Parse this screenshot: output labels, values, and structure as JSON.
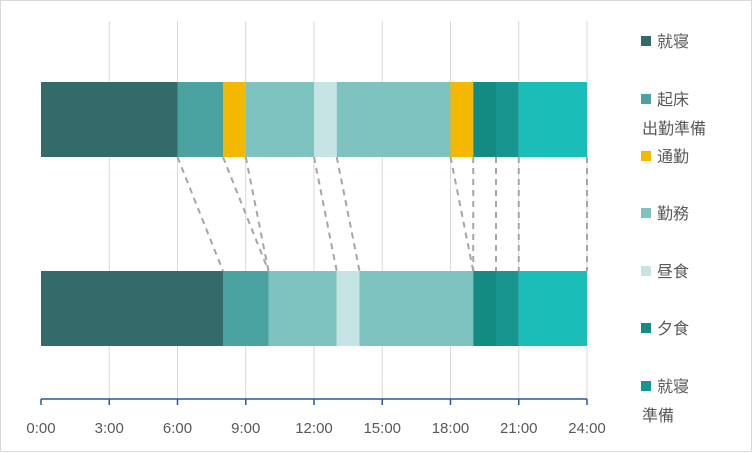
{
  "chart_data": {
    "type": "bar",
    "orientation": "horizontal",
    "stacked": true,
    "x_unit": "hours",
    "xlim": [
      0,
      24
    ],
    "x_tick_values": [
      0,
      3,
      6,
      9,
      12,
      15,
      18,
      21,
      24
    ],
    "x_tick_labels": [
      "0:00",
      "3:00",
      "6:00",
      "9:00",
      "12:00",
      "15:00",
      "18:00",
      "21:00",
      "24:00"
    ],
    "grid": true,
    "legend_position": "right",
    "legend": [
      {
        "key": "sleep",
        "lines": [
          "就寝"
        ],
        "color": "#336b6b"
      },
      {
        "key": "wake_prep",
        "lines": [
          "起床",
          "出勤準備"
        ],
        "color": "#4aa3a0"
      },
      {
        "key": "commute",
        "lines": [
          "通勤"
        ],
        "color": "#f5b800"
      },
      {
        "key": "work",
        "lines": [
          "勤務"
        ],
        "color": "#7fc3c0"
      },
      {
        "key": "lunch",
        "lines": [
          "昼食"
        ],
        "color": "#c5e4e3"
      },
      {
        "key": "dinner",
        "lines": [
          "夕食"
        ],
        "color": "#138b83"
      },
      {
        "key": "bed_prep",
        "lines": [
          "就寝",
          "準備"
        ],
        "color": "#17968f"
      }
    ],
    "bars": [
      {
        "segments": [
          {
            "key": "sleep",
            "start": 0,
            "end": 6,
            "color": "#336b6b"
          },
          {
            "key": "wake_prep",
            "start": 6,
            "end": 8,
            "color": "#4aa3a0"
          },
          {
            "key": "commute",
            "start": 8,
            "end": 9,
            "color": "#f5b800"
          },
          {
            "key": "work",
            "start": 9,
            "end": 12,
            "color": "#7fc3c0"
          },
          {
            "key": "lunch",
            "start": 12,
            "end": 13,
            "color": "#c5e4e3"
          },
          {
            "key": "work",
            "start": 13,
            "end": 18,
            "color": "#7fc3c0"
          },
          {
            "key": "commute",
            "start": 18,
            "end": 19,
            "color": "#f5b800"
          },
          {
            "key": "dinner",
            "start": 19,
            "end": 20,
            "color": "#138b83"
          },
          {
            "key": "bed_prep",
            "start": 20,
            "end": 21,
            "color": "#17968f"
          },
          {
            "key": "bed_prep",
            "start": 21,
            "end": 24,
            "color": "#1abdb8"
          }
        ]
      },
      {
        "segments": [
          {
            "key": "sleep",
            "start": 0,
            "end": 8,
            "color": "#336b6b"
          },
          {
            "key": "wake_prep",
            "start": 8,
            "end": 10,
            "color": "#4aa3a0"
          },
          {
            "key": "work",
            "start": 10,
            "end": 13,
            "color": "#7fc3c0"
          },
          {
            "key": "lunch",
            "start": 13,
            "end": 14,
            "color": "#c5e4e3"
          },
          {
            "key": "work",
            "start": 14,
            "end": 19,
            "color": "#7fc3c0"
          },
          {
            "key": "dinner",
            "start": 19,
            "end": 20,
            "color": "#138b83"
          },
          {
            "key": "bed_prep",
            "start": 20,
            "end": 21,
            "color": "#17968f"
          },
          {
            "key": "bed_prep",
            "start": 21,
            "end": 24,
            "color": "#1abdb8"
          }
        ]
      }
    ],
    "connectors": [
      {
        "from": 6,
        "to": 8
      },
      {
        "from": 8,
        "to": 10
      },
      {
        "from": 9,
        "to": 10
      },
      {
        "from": 12,
        "to": 13
      },
      {
        "from": 13,
        "to": 14
      },
      {
        "from": 18,
        "to": 19
      },
      {
        "from": 19,
        "to": 19
      },
      {
        "from": 20,
        "to": 20
      },
      {
        "from": 21,
        "to": 21
      },
      {
        "from": 24,
        "to": 24
      }
    ]
  }
}
